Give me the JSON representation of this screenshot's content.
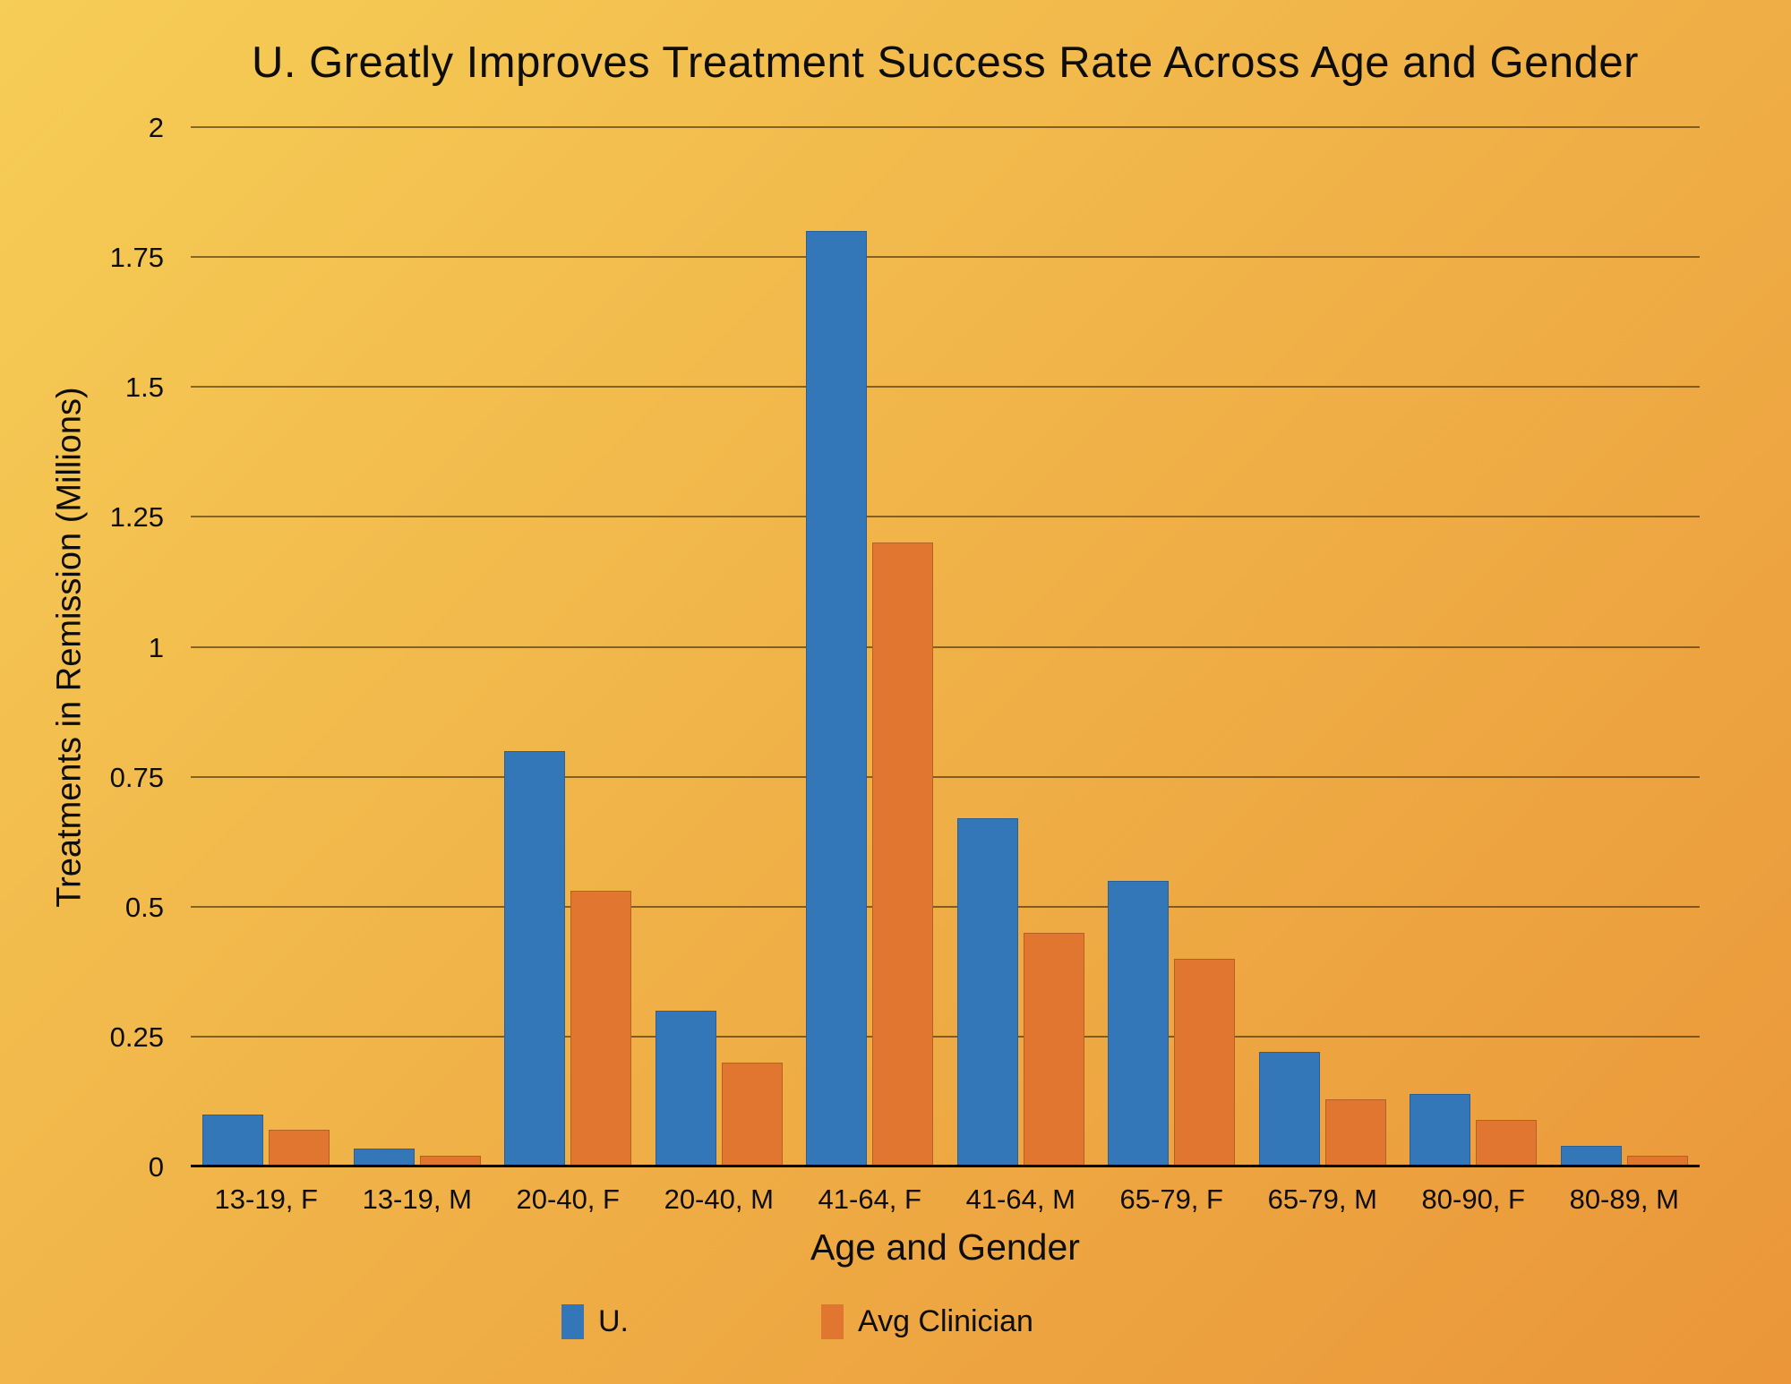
{
  "title": "U. Greatly Improves Treatment Success Rate Across Age and Gender",
  "colors": {
    "background_top_left": "#f6cd56",
    "background_bottom_right": "#ea9639",
    "series_u": "#3377b8",
    "series_avg_clinician": "#e0762f",
    "gridline": "rgba(40,26,0,0.55)",
    "axis_line": "#000000",
    "text": "#0d0d0d"
  },
  "chart_data": {
    "type": "bar",
    "title": "U. Greatly Improves Treatment Success Rate Across Age and Gender",
    "xlabel": "Age and Gender",
    "ylabel": "Treatments in Remission (Millions)",
    "categories": [
      "13-19, F",
      "13-19, M",
      "20-40, F",
      "20-40, M",
      "41-64, F",
      "41-64, M",
      "65-79, F",
      "65-79, M",
      "80-90, F",
      "80-89, M"
    ],
    "series": [
      {
        "name": "U.",
        "color": "#3377b8",
        "values": [
          0.1,
          0.035,
          0.8,
          0.3,
          1.8,
          0.67,
          0.55,
          0.22,
          0.14,
          0.04
        ]
      },
      {
        "name": "Avg Clinician",
        "color": "#e0762f",
        "values": [
          0.07,
          0.02,
          0.53,
          0.2,
          1.2,
          0.45,
          0.4,
          0.13,
          0.09,
          0.02
        ]
      }
    ],
    "ylim": [
      0,
      2
    ],
    "yticks": [
      0,
      0.25,
      0.5,
      0.75,
      1,
      1.25,
      1.5,
      1.75,
      2
    ],
    "ytick_labels": [
      "0",
      "0.25",
      "0.5",
      "0.75",
      "1",
      "1.25",
      "1.5",
      "1.75",
      "2"
    ],
    "grid": "horizontal",
    "legend_position": "bottom"
  },
  "legend": {
    "items": [
      {
        "label": "U."
      },
      {
        "label": "Avg Clinician"
      }
    ]
  }
}
